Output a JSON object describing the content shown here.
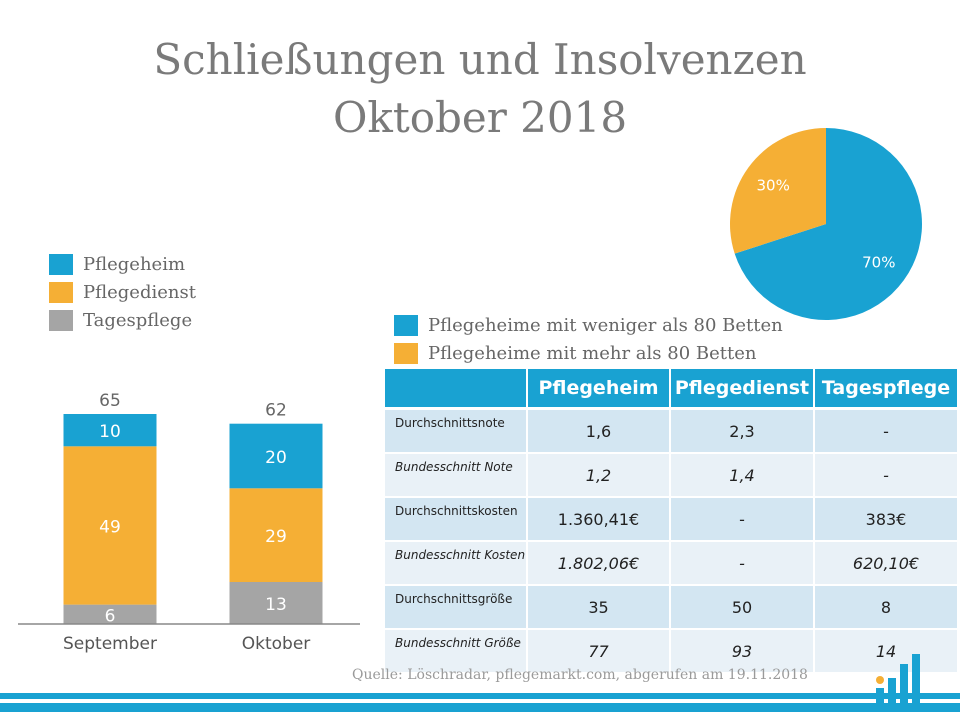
{
  "title_line1": "Schließungen und Insolvenzen",
  "title_line2": "Oktober 2018",
  "colors": {
    "pflegeheim": "#19a2d2",
    "pflegedienst": "#f5af35",
    "tagespflege": "#a5a5a5",
    "table_header": "#19a2d2"
  },
  "legend_bar": [
    {
      "label": "Pflegeheim",
      "color": "#19a2d2"
    },
    {
      "label": "Pflegedienst",
      "color": "#f5af35"
    },
    {
      "label": "Tagespflege",
      "color": "#a5a5a5"
    }
  ],
  "legend_pie": [
    {
      "label": "Pflegeheime mit weniger als 80 Betten",
      "color": "#19a2d2"
    },
    {
      "label": "Pflegeheime mit mehr als 80 Betten",
      "color": "#f5af35"
    }
  ],
  "chart_data": [
    {
      "type": "bar",
      "stacked": true,
      "categories": [
        "September",
        "Oktober"
      ],
      "series": [
        {
          "name": "Tagespflege",
          "values": [
            6,
            13
          ]
        },
        {
          "name": "Pflegedienst",
          "values": [
            49,
            29
          ]
        },
        {
          "name": "Pflegeheim",
          "values": [
            10,
            20
          ]
        }
      ],
      "totals": [
        "65",
        "62"
      ],
      "ylim": [
        0,
        65
      ]
    },
    {
      "type": "pie",
      "slices": [
        {
          "name": "Pflegeheime mit weniger als 80 Betten",
          "value": 70,
          "label": "70%"
        },
        {
          "name": "Pflegeheime mit mehr als 80 Betten",
          "value": 30,
          "label": "30%"
        }
      ]
    }
  ],
  "table": {
    "headers": [
      "",
      "Pflegeheim",
      "Pflegedienst",
      "Tagespflege"
    ],
    "rows": [
      {
        "label": "Durchschnittsnote",
        "values": [
          "1,6",
          "2,3",
          "-"
        ]
      },
      {
        "label": "Bundesschnitt Note",
        "values": [
          "1,2",
          "1,4",
          "-"
        ]
      },
      {
        "label": "Durchschnittskosten",
        "values": [
          "1.360,41€",
          "-",
          "383€"
        ]
      },
      {
        "label": "Bundesschnitt Kosten",
        "values": [
          "1.802,06€",
          "-",
          "620,10€"
        ]
      },
      {
        "label": "Durchschnittsgröße",
        "values": [
          "35",
          "50",
          "8"
        ]
      },
      {
        "label": "Bundesschnitt Größe",
        "values": [
          "77",
          "93",
          "14"
        ]
      }
    ]
  },
  "source": "Quelle: Löschradar, pflegemarkt.com, abgerufen am 19.11.2018"
}
